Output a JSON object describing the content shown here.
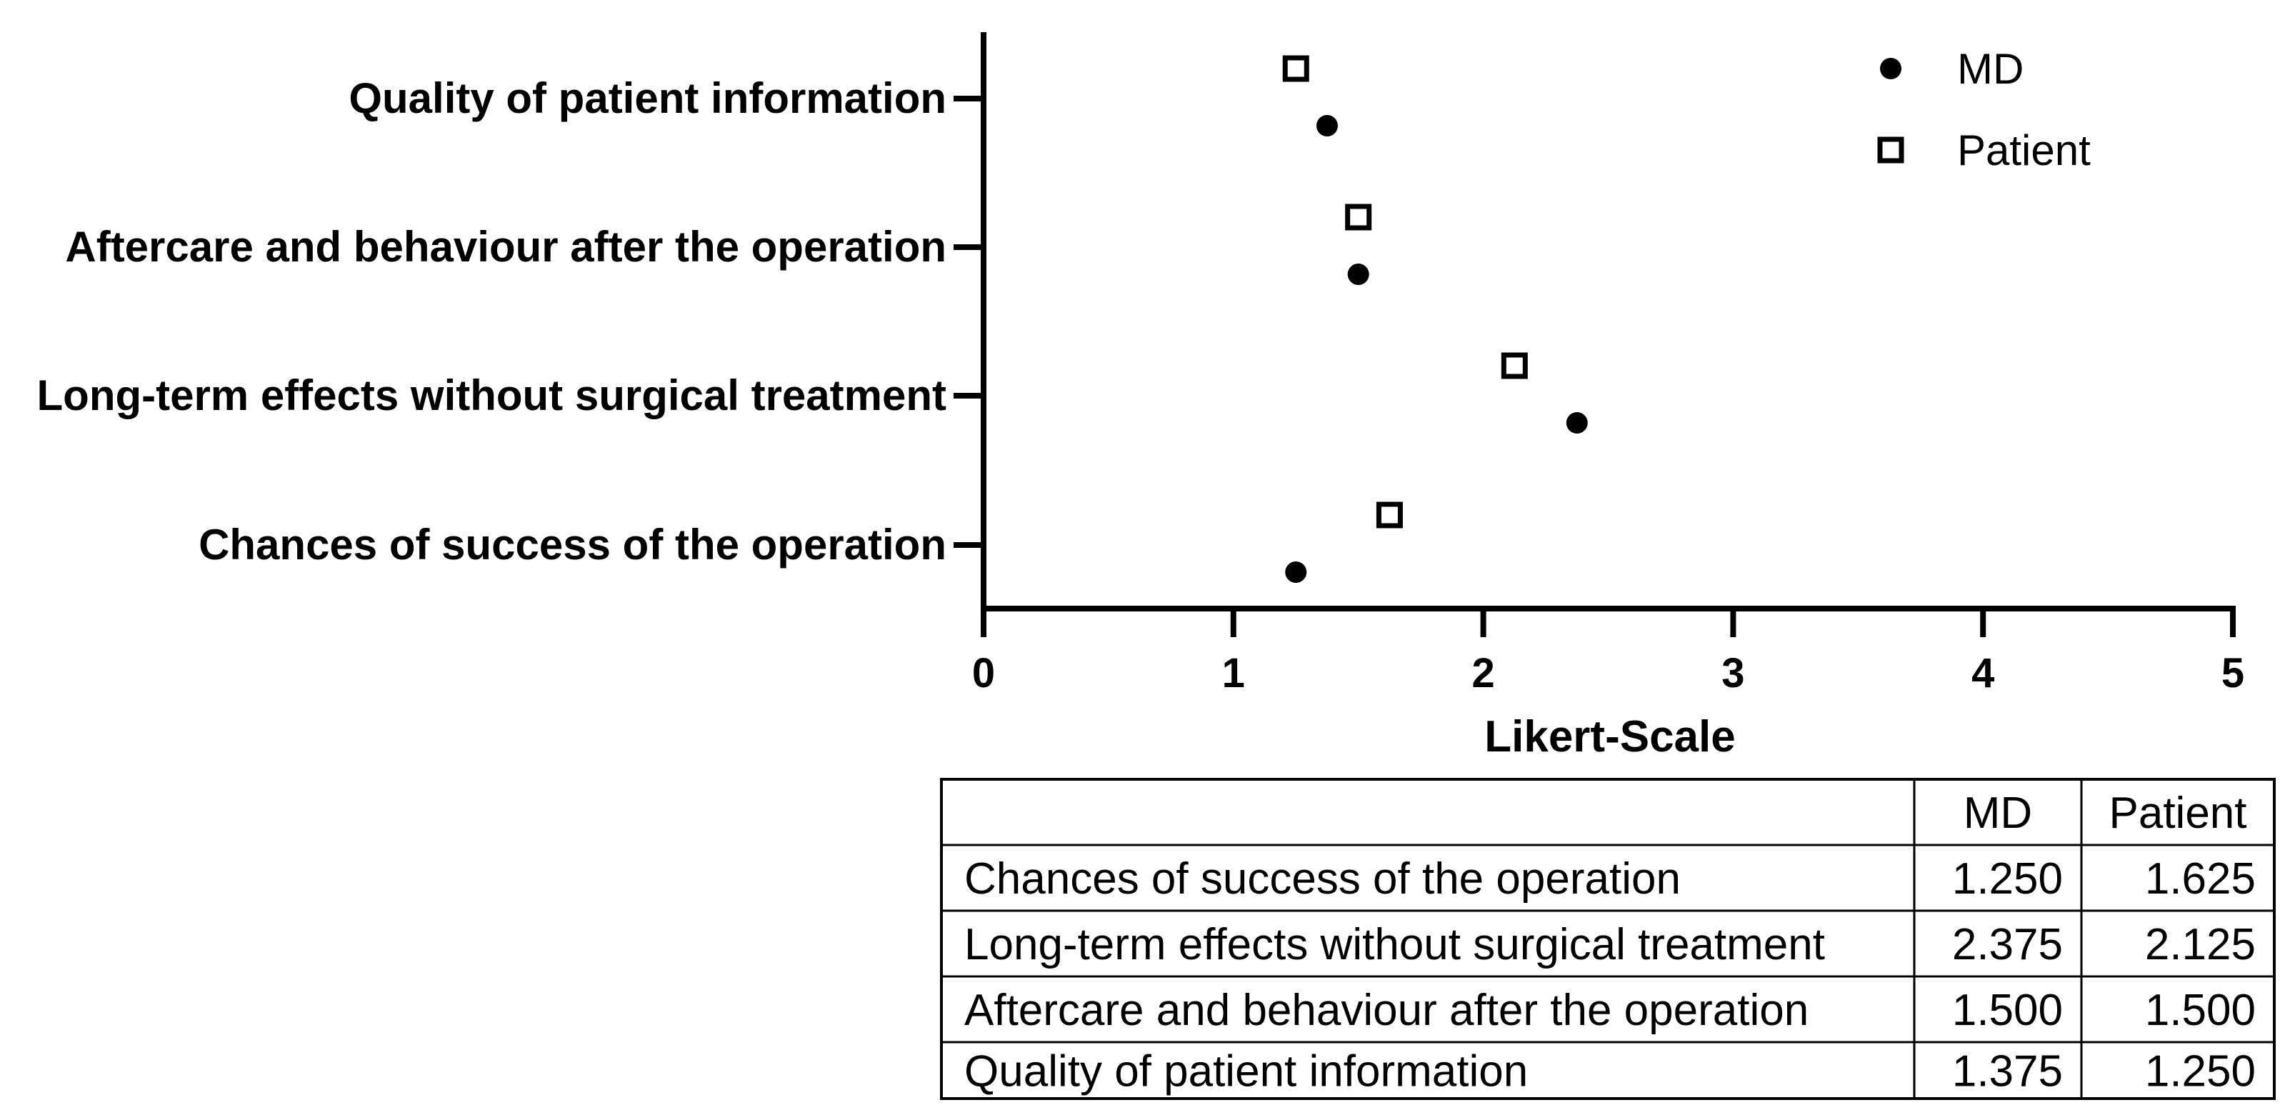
{
  "chart_data": {
    "type": "scatter",
    "orientation": "horizontal",
    "xlabel": "Likert-Scale",
    "xlim": [
      0,
      5
    ],
    "xticks": [
      "0",
      "1",
      "2",
      "3",
      "4",
      "5"
    ],
    "categories": [
      "Quality of patient information",
      "Aftercare and behaviour after the operation",
      "Long-term effects without surgical treatment",
      "Chances of success of the operation"
    ],
    "series": [
      {
        "name": "MD",
        "marker": "filled-circle",
        "values": [
          1.375,
          1.5,
          2.375,
          1.25
        ]
      },
      {
        "name": "Patient",
        "marker": "open-square",
        "values": [
          1.25,
          1.5,
          2.125,
          1.625
        ]
      }
    ],
    "legend_position": "top-right",
    "grid": false
  },
  "table": {
    "headers": [
      "",
      "MD",
      "Patient"
    ],
    "rows": [
      [
        "Chances of success of the operation",
        "1.250",
        "1.625"
      ],
      [
        "Long-term effects without surgical treatment",
        "2.375",
        "2.125"
      ],
      [
        "Aftercare and behaviour after the operation",
        "1.500",
        "1.500"
      ],
      [
        "Quality of patient information",
        "1.375",
        "1.250"
      ]
    ]
  },
  "colors": {
    "ink": "#000000",
    "background": "#ffffff"
  }
}
